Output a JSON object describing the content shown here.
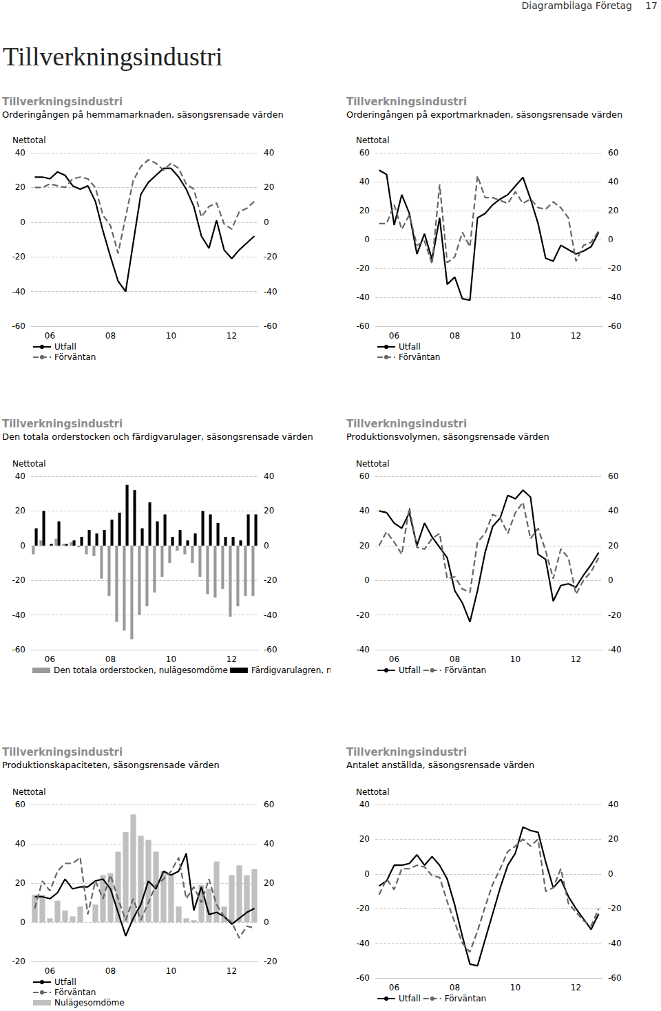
{
  "header": {
    "section": "Diagrambilaga Företag",
    "page": 17
  },
  "heading": "Tillverkningsindustri",
  "chart_data": [
    {
      "type": "line",
      "title": "Tillverkningsindustri",
      "subtitle": "Orderingången på hemmamarknaden, säsongsrensade värden",
      "y_label": "Nettotal",
      "categories": [
        null,
        null,
        "06",
        null,
        null,
        null,
        null,
        null,
        null,
        null,
        "08",
        null,
        null,
        null,
        null,
        null,
        null,
        null,
        "10",
        null,
        null,
        null,
        null,
        null,
        null,
        null,
        "12",
        null,
        null,
        null
      ],
      "series": [
        {
          "name": "Utfall",
          "color": "#000000",
          "line_style": "solid",
          "values": [
            26,
            26,
            25,
            29,
            27,
            21,
            19,
            21,
            12,
            -5,
            -20,
            -34,
            -40,
            -12,
            16,
            23,
            27,
            31,
            31,
            26,
            19,
            9,
            -8,
            -15,
            1,
            -16,
            -21,
            -16,
            -12,
            -8
          ]
        },
        {
          "name": "Förväntan",
          "color": "#666666",
          "line_style": "dashed",
          "values": [
            20,
            20,
            22,
            21,
            20,
            25,
            26,
            25,
            20,
            4,
            -2,
            -18,
            3,
            24,
            32,
            36,
            34,
            30,
            34,
            31,
            22,
            19,
            3,
            9,
            11,
            -1,
            -4,
            6,
            8,
            12
          ]
        }
      ],
      "ylim": [
        -60,
        40
      ],
      "yticks": [
        -60,
        -40,
        -20,
        0,
        20,
        40
      ],
      "y2lim": [
        -60,
        40
      ],
      "y2ticks": [
        -60,
        -40,
        -20,
        0,
        20,
        40
      ],
      "grid": true,
      "legend": "bottom"
    },
    {
      "type": "line",
      "title": "Tillverkningsindustri",
      "subtitle": "Orderingången på exportmarknaden, säsongsrensade värden",
      "y_label": "Nettotal",
      "categories": [
        null,
        null,
        "06",
        null,
        null,
        null,
        null,
        null,
        null,
        null,
        "08",
        null,
        null,
        null,
        null,
        null,
        null,
        null,
        "10",
        null,
        null,
        null,
        null,
        null,
        null,
        null,
        "12",
        null,
        null,
        null
      ],
      "series": [
        {
          "name": "Utfall",
          "color": "#000000",
          "line_style": "solid",
          "values": [
            48,
            45,
            10,
            31,
            18,
            -10,
            4,
            -14,
            15,
            -31,
            -26,
            -41,
            -42,
            15,
            18,
            24,
            28,
            31,
            37,
            43,
            28,
            11,
            -13,
            -15,
            -4,
            -7,
            -10,
            -8,
            -5,
            5
          ]
        },
        {
          "name": "Förväntan",
          "color": "#666666",
          "line_style": "dashed",
          "values": [
            11,
            11,
            24,
            7,
            17,
            -4,
            -1,
            -17,
            38,
            -16,
            -12,
            5,
            -5,
            44,
            29,
            29,
            27,
            25,
            33,
            25,
            28,
            22,
            21,
            26,
            22,
            15,
            -15,
            -4,
            -2,
            6
          ]
        }
      ],
      "ylim": [
        -60,
        60
      ],
      "yticks": [
        -60,
        -40,
        -20,
        0,
        20,
        40,
        60
      ],
      "y2lim": [
        -60,
        60
      ],
      "y2ticks": [
        -60,
        -40,
        -20,
        0,
        20,
        40,
        60
      ],
      "grid": true,
      "legend": "bottom"
    },
    {
      "type": "bar",
      "title": "Tillverkningsindustri",
      "subtitle": "Den totala orderstocken och färdigvarulager, säsongsrensade värden",
      "y_label": "Nettotal",
      "categories": [
        null,
        null,
        "06",
        null,
        null,
        null,
        null,
        null,
        null,
        null,
        "08",
        null,
        null,
        null,
        null,
        null,
        null,
        null,
        "10",
        null,
        null,
        null,
        null,
        null,
        null,
        null,
        "12",
        null,
        null,
        null
      ],
      "series": [
        {
          "name": "Den totala orderstocken, nulägesomdöme",
          "color": "#999999",
          "values": [
            -5,
            3,
            0,
            4,
            1,
            2,
            -1,
            -5,
            -6,
            -19,
            -29,
            -44,
            -49,
            -54,
            -40,
            -35,
            -27,
            -18,
            -10,
            -3,
            -5,
            -10,
            -18,
            -28,
            -30,
            -25,
            -41,
            -35,
            -29,
            -29
          ]
        },
        {
          "name": "Färdigvarulagren, nulägesomdöme",
          "color": "#000000",
          "values": [
            10,
            20,
            1,
            14,
            1,
            3,
            5,
            9,
            7,
            9,
            15,
            19,
            35,
            32,
            10,
            25,
            14,
            18,
            5,
            9,
            3,
            7,
            20,
            18,
            13,
            5,
            5,
            3,
            18,
            18
          ]
        }
      ],
      "ylim": [
        -60,
        40
      ],
      "yticks": [
        -60,
        -40,
        -20,
        0,
        20,
        40
      ],
      "y2lim": [
        -60,
        40
      ],
      "y2ticks": [
        -60,
        -40,
        -20,
        0,
        20,
        40
      ],
      "grid": true,
      "legend": "bottom"
    },
    {
      "type": "line",
      "title": "Tillverkningsindustri",
      "subtitle": "Produktionsvolymen, säsongsrensade värden",
      "y_label": "Nettotal",
      "categories": [
        null,
        null,
        "06",
        null,
        null,
        null,
        null,
        null,
        null,
        null,
        "08",
        null,
        null,
        null,
        null,
        null,
        null,
        null,
        "10",
        null,
        null,
        null,
        null,
        null,
        null,
        null,
        "12",
        null,
        null,
        null
      ],
      "series": [
        {
          "name": "Utfall",
          "color": "#000000",
          "line_style": "solid",
          "values": [
            40,
            39,
            33,
            30,
            39,
            20,
            33,
            25,
            19,
            13,
            -6,
            -13,
            -24,
            -6,
            16,
            31,
            36,
            49,
            47,
            52,
            48,
            15,
            12,
            -12,
            -3,
            -2,
            -4,
            3,
            9,
            16
          ]
        },
        {
          "name": "Förväntan",
          "color": "#666666",
          "line_style": "dashed",
          "values": [
            20,
            28,
            22,
            15,
            42,
            19,
            18,
            24,
            27,
            1,
            2,
            -5,
            -7,
            22,
            27,
            38,
            36,
            27,
            39,
            45,
            24,
            30,
            17,
            1,
            18,
            13,
            -8,
            0,
            5,
            13
          ]
        }
      ],
      "ylim": [
        -40,
        60
      ],
      "yticks": [
        -40,
        -20,
        0,
        20,
        40,
        60
      ],
      "y2lim": [
        -40,
        60
      ],
      "y2ticks": [
        -40,
        -20,
        0,
        20,
        40,
        60
      ],
      "grid": true,
      "legend": "bottom"
    },
    {
      "type": "line",
      "title": "Tillverkningsindustri",
      "subtitle": "Produktionskapaciteten, säsongsrensade värden",
      "y_label": "Nettotal",
      "categories": [
        null,
        null,
        "06",
        null,
        null,
        null,
        null,
        null,
        null,
        null,
        "08",
        null,
        null,
        null,
        null,
        null,
        null,
        null,
        "10",
        null,
        null,
        null,
        null,
        null,
        null,
        null,
        "12",
        null,
        null,
        null
      ],
      "series": [
        {
          "name": "Utfall",
          "color": "#000000",
          "line_style": "solid",
          "values": [
            13,
            13,
            12,
            15,
            22,
            17,
            18,
            18,
            21,
            22,
            17,
            5,
            -7,
            2,
            9,
            21,
            17,
            26,
            24,
            26,
            35,
            6,
            18,
            4,
            5,
            3,
            -1,
            2,
            5,
            7
          ]
        },
        {
          "name": "Förväntan",
          "color": "#666666",
          "line_style": "dashed",
          "values": [
            7,
            21,
            16,
            26,
            30,
            30,
            33,
            4,
            21,
            12,
            24,
            12,
            1,
            12,
            1,
            10,
            19,
            22,
            26,
            33,
            12,
            18,
            10,
            22,
            9,
            3,
            0,
            -8,
            -2,
            -3
          ]
        },
        {
          "name": "Nulägesomdöme",
          "type": "bar",
          "color": "#c0c0c0",
          "values": [
            14,
            14,
            2,
            11,
            6,
            3,
            8,
            0,
            9,
            24,
            25,
            36,
            46,
            55,
            44,
            42,
            36,
            26,
            24,
            8,
            2,
            1,
            19,
            17,
            31,
            8,
            24,
            29,
            24,
            27
          ]
        }
      ],
      "ylim": [
        -20,
        60
      ],
      "yticks": [
        -20,
        0,
        20,
        40,
        60
      ],
      "y2lim": [
        -20,
        60
      ],
      "y2ticks": [
        -20,
        0,
        20,
        40,
        60
      ],
      "grid": true,
      "legend": "bottom"
    },
    {
      "type": "line",
      "title": "Tillverkningsindustri",
      "subtitle": "Antalet anställda, säsongsrensade värden",
      "y_label": "Nettotal",
      "categories": [
        null,
        null,
        "06",
        null,
        null,
        null,
        null,
        null,
        null,
        null,
        "08",
        null,
        null,
        null,
        null,
        null,
        null,
        null,
        "10",
        null,
        null,
        null,
        null,
        null,
        null,
        null,
        "12",
        null,
        null,
        null
      ],
      "series": [
        {
          "name": "Utfall",
          "color": "#000000",
          "line_style": "solid",
          "values": [
            -7,
            -4,
            5,
            5,
            6,
            11,
            5,
            10,
            5,
            -3,
            -18,
            -36,
            -52,
            -53,
            -38,
            -23,
            -8,
            5,
            12,
            27,
            25,
            24,
            7,
            -8,
            -3,
            -13,
            -20,
            -26,
            -32,
            -23
          ]
        },
        {
          "name": "Förväntan",
          "color": "#666666",
          "line_style": "dashed",
          "values": [
            -12,
            -3,
            -9,
            3,
            3,
            5,
            4,
            -1,
            -2,
            -16,
            -28,
            -40,
            -45,
            -33,
            -19,
            -6,
            3,
            13,
            16,
            20,
            16,
            20,
            -10,
            -8,
            3,
            -17,
            -22,
            -27,
            -30,
            -20
          ]
        }
      ],
      "ylim": [
        -60,
        40
      ],
      "yticks": [
        -60,
        -40,
        -20,
        0,
        20,
        40
      ],
      "y2lim": [
        -60,
        40
      ],
      "y2ticks": [
        -60,
        -40,
        -20,
        0,
        20,
        40
      ],
      "grid": true,
      "legend": "bottom"
    }
  ]
}
